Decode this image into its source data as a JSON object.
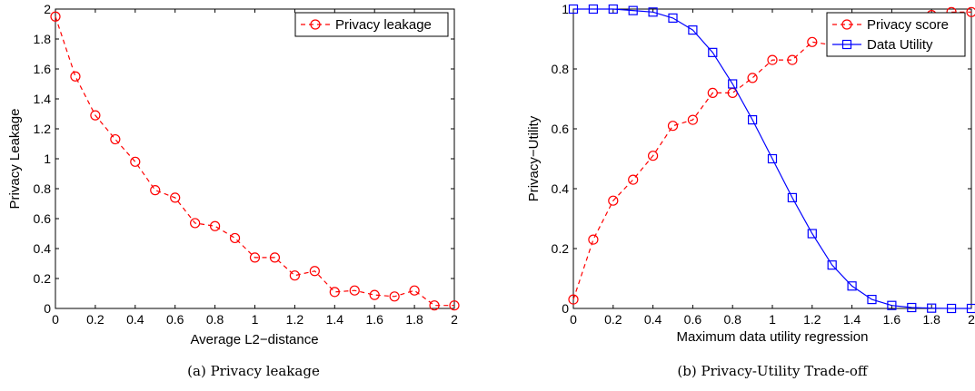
{
  "chart_data": [
    {
      "type": "line",
      "caption": "(a)  Privacy leakage",
      "xlabel": "Average L2−distance",
      "ylabel": "Privacy Leakage",
      "xlim": [
        0,
        2
      ],
      "ylim": [
        0,
        2
      ],
      "xticks": [
        0,
        0.2,
        0.4,
        0.6,
        0.8,
        1,
        1.2,
        1.4,
        1.6,
        1.8,
        2
      ],
      "xtick_labels": [
        "0",
        "0.2",
        "0.4",
        "0.6",
        "0.8",
        "1",
        "1.2",
        "1.4",
        "1.6",
        "1.8",
        "2"
      ],
      "yticks": [
        0,
        0.2,
        0.4,
        0.6,
        0.8,
        1,
        1.2,
        1.4,
        1.6,
        1.8,
        2
      ],
      "ytick_labels": [
        "0",
        "0.2",
        "0.4",
        "0.6",
        "0.8",
        "1",
        "1.2",
        "1.4",
        "1.6",
        "1.8",
        "2"
      ],
      "grid": false,
      "legend_position": "top-right",
      "series": [
        {
          "name": "Privacy leakage",
          "color": "#ff0000",
          "line_style": "dashed",
          "marker": "circle",
          "x": [
            0,
            0.1,
            0.2,
            0.3,
            0.4,
            0.5,
            0.6,
            0.7,
            0.8,
            0.9,
            1.0,
            1.1,
            1.2,
            1.3,
            1.4,
            1.5,
            1.6,
            1.7,
            1.8,
            1.9,
            2.0
          ],
          "y": [
            1.95,
            1.55,
            1.29,
            1.13,
            0.98,
            0.79,
            0.74,
            0.57,
            0.55,
            0.47,
            0.34,
            0.34,
            0.22,
            0.25,
            0.11,
            0.12,
            0.09,
            0.08,
            0.12,
            0.02,
            0.02
          ]
        }
      ]
    },
    {
      "type": "line",
      "caption": "(b)  Privacy-Utility Trade-off",
      "xlabel": "Maximum data utility regression",
      "ylabel": "Privacy−Utility",
      "xlim": [
        0,
        2
      ],
      "ylim": [
        0,
        1
      ],
      "xticks": [
        0,
        0.2,
        0.4,
        0.6,
        0.8,
        1,
        1.2,
        1.4,
        1.6,
        1.8,
        2
      ],
      "xtick_labels": [
        "0",
        "0.2",
        "0.4",
        "0.6",
        "0.8",
        "1",
        "1.2",
        "1.4",
        "1.6",
        "1.8",
        "2"
      ],
      "yticks": [
        0,
        0.2,
        0.4,
        0.6,
        0.8,
        1
      ],
      "ytick_labels": [
        "0",
        "0.2",
        "0.4",
        "0.6",
        "0.8",
        "1"
      ],
      "grid": false,
      "legend_position": "top-right",
      "series": [
        {
          "name": "Privacy score",
          "color": "#ff0000",
          "line_style": "dashed",
          "marker": "circle",
          "x": [
            0,
            0.1,
            0.2,
            0.3,
            0.4,
            0.5,
            0.6,
            0.7,
            0.8,
            0.9,
            1.0,
            1.1,
            1.2,
            1.3,
            1.4,
            1.5,
            1.6,
            1.7,
            1.8,
            1.9,
            2.0
          ],
          "y": [
            0.03,
            0.23,
            0.36,
            0.43,
            0.51,
            0.61,
            0.63,
            0.72,
            0.72,
            0.77,
            0.83,
            0.83,
            0.89,
            0.88,
            0.93,
            0.93,
            0.96,
            0.96,
            0.98,
            0.99,
            0.99
          ]
        },
        {
          "name": "Data Utility",
          "color": "#0000ff",
          "line_style": "solid",
          "marker": "square",
          "x": [
            0,
            0.1,
            0.2,
            0.3,
            0.4,
            0.5,
            0.6,
            0.7,
            0.8,
            0.9,
            1.0,
            1.1,
            1.2,
            1.3,
            1.4,
            1.5,
            1.6,
            1.7,
            1.8,
            1.9,
            2.0
          ],
          "y": [
            1.0,
            1.0,
            1.0,
            0.995,
            0.99,
            0.97,
            0.93,
            0.855,
            0.75,
            0.63,
            0.5,
            0.37,
            0.25,
            0.145,
            0.075,
            0.03,
            0.01,
            0.003,
            0.001,
            0.0,
            0.0
          ]
        }
      ]
    }
  ]
}
